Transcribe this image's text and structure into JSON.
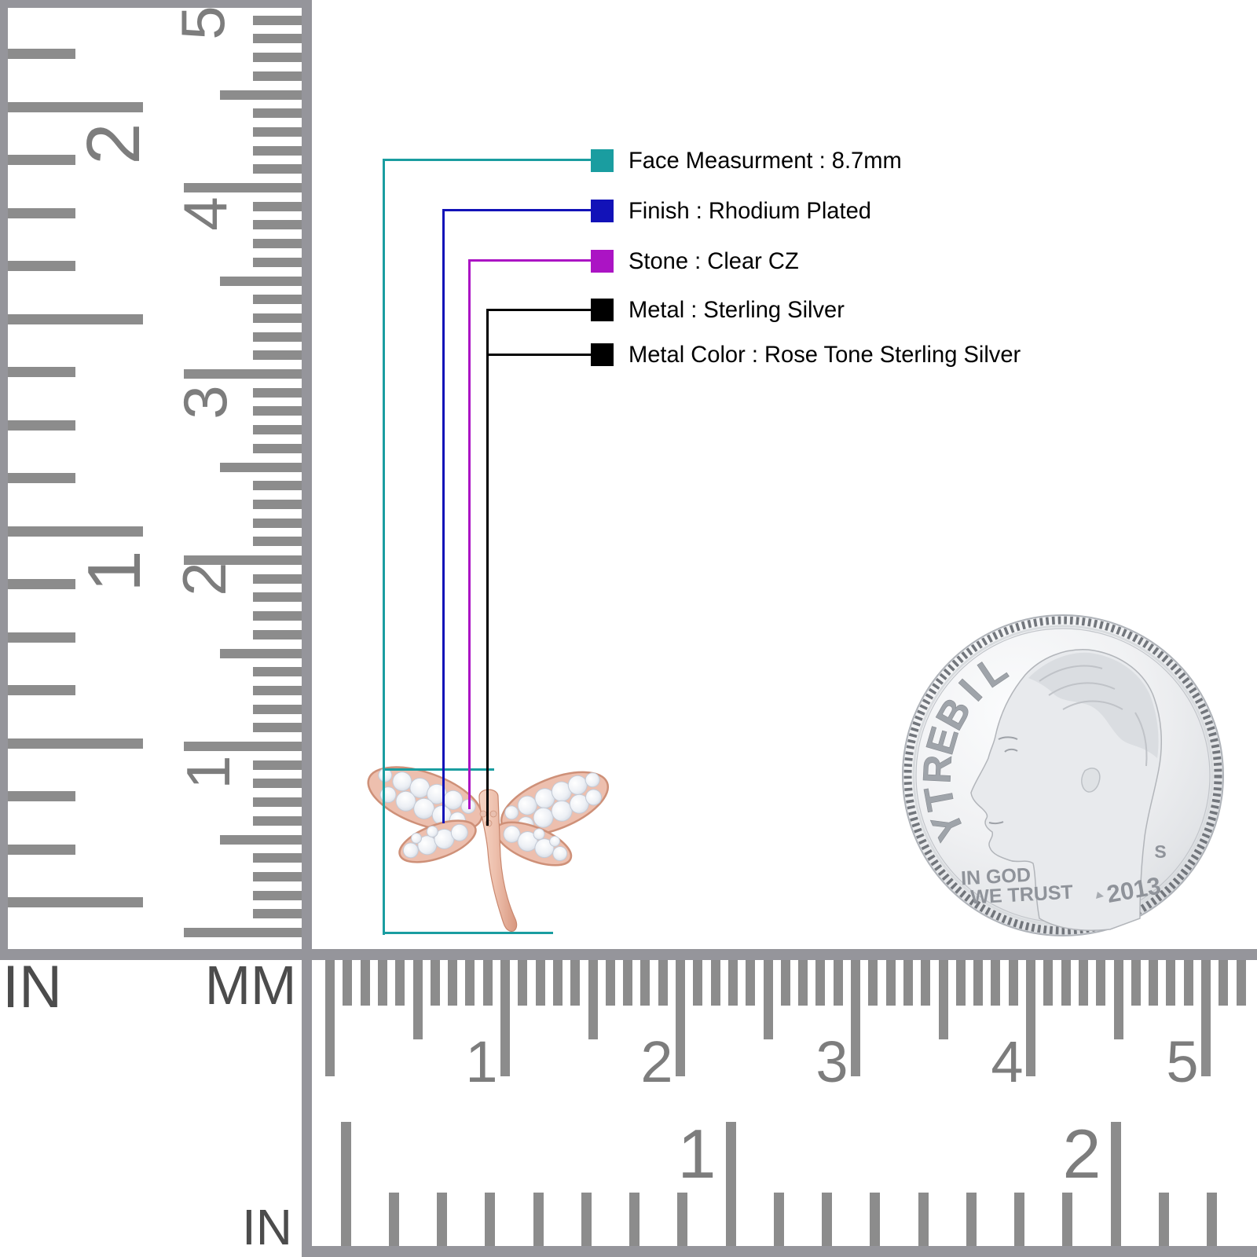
{
  "annotations": {
    "items": [
      {
        "label": "Face Measurment : 8.7mm",
        "color": "#1A9DA0"
      },
      {
        "label": "Finish : Rhodium Plated",
        "color": "#1212B8"
      },
      {
        "label": "Stone : Clear CZ",
        "color": "#AB14C4"
      },
      {
        "label": "Metal : Sterling Silver",
        "color": "#000000"
      },
      {
        "label": "Metal Color : Rose Tone Sterling Silver",
        "color": "#000000"
      }
    ]
  },
  "rulers": {
    "vertical": {
      "inch_label": "IN",
      "mm_label": "MM",
      "inch_numbers": [
        "2",
        "1"
      ],
      "mm_numbers": [
        "5",
        "4",
        "3",
        "2",
        "1"
      ]
    },
    "horizontal": {
      "inch_label": "IN",
      "mm_numbers": [
        "1",
        "2",
        "3",
        "4",
        "5"
      ],
      "inch_numbers": [
        "1",
        "2"
      ]
    }
  },
  "coin": {
    "legend": "LIBERTY",
    "motto_line1": "IN GOD",
    "motto_line2": "WE TRUST",
    "year": "2013",
    "mint_mark": "S"
  },
  "colors": {
    "teal": "#1A9DA0",
    "blue": "#1212B8",
    "magenta": "#AB14C4",
    "black": "#000000",
    "ruler_tick": "#8C8C8C",
    "ruler_frame": "#95959B",
    "rose_gold": "#E5A98F",
    "cz_stone": "#EEF1F6",
    "coin_silver": "#E2E4E7"
  }
}
